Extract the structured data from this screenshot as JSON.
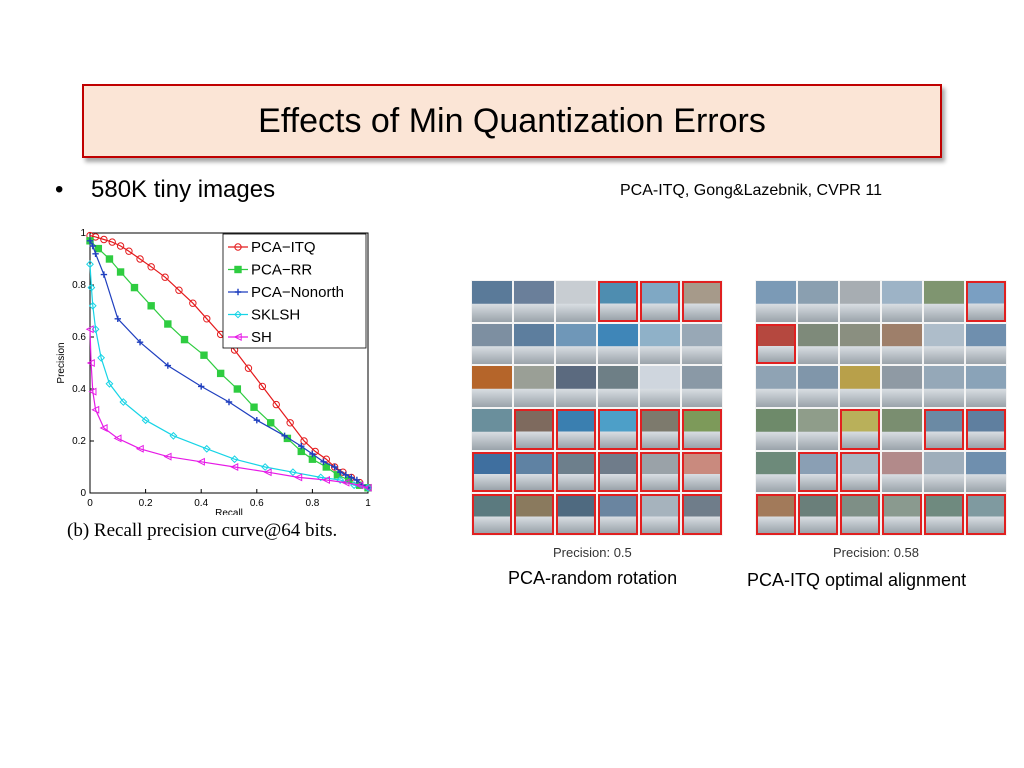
{
  "slide": {
    "title": "Effects of Min Quantization Errors",
    "bullet": "580K tiny images",
    "citation": "PCA-ITQ, Gong&Lazebnik, CVPR 11",
    "chart_caption": "(b)  Recall precision curve@64 bits."
  },
  "panels": [
    {
      "precision_label": "Precision: 0.5",
      "caption": "PCA-random rotation",
      "cells": [
        {
          "c": "#5a7a99",
          "r": false
        },
        {
          "c": "#6a7f9a",
          "r": false
        },
        {
          "c": "#c8cdd2",
          "r": false
        },
        {
          "c": "#4e8db0",
          "r": true
        },
        {
          "c": "#7fa8c4",
          "r": true
        },
        {
          "c": "#a69a8a",
          "r": true
        },
        {
          "c": "#7d8fa1",
          "r": false
        },
        {
          "c": "#5d7e9e",
          "r": false
        },
        {
          "c": "#6f97b8",
          "r": false
        },
        {
          "c": "#3f86b8",
          "r": false
        },
        {
          "c": "#8fb1c8",
          "r": false
        },
        {
          "c": "#98a8b6",
          "r": false
        },
        {
          "c": "#b5652a",
          "r": false
        },
        {
          "c": "#9a9f96",
          "r": false
        },
        {
          "c": "#5b6a7f",
          "r": false
        },
        {
          "c": "#6e7f86",
          "r": false
        },
        {
          "c": "#cfd6de",
          "r": false
        },
        {
          "c": "#8a99a6",
          "r": false
        },
        {
          "c": "#6a8f9c",
          "r": false
        },
        {
          "c": "#7e6a5e",
          "r": true
        },
        {
          "c": "#3a7fb0",
          "r": true
        },
        {
          "c": "#4d9fc8",
          "r": true
        },
        {
          "c": "#7d7a6d",
          "r": true
        },
        {
          "c": "#7d9a5a",
          "r": true
        },
        {
          "c": "#3f6f9f",
          "r": true
        },
        {
          "c": "#5f82a3",
          "r": true
        },
        {
          "c": "#6d7f8c",
          "r": true
        },
        {
          "c": "#6f7c8a",
          "r": true
        },
        {
          "c": "#9aa2a8",
          "r": true
        },
        {
          "c": "#c98a7e",
          "r": true
        },
        {
          "c": "#5b7a7f",
          "r": true
        },
        {
          "c": "#8a7a5e",
          "r": true
        },
        {
          "c": "#4f6a80",
          "r": true
        },
        {
          "c": "#6a85a0",
          "r": true
        },
        {
          "c": "#a6b3bd",
          "r": true
        },
        {
          "c": "#6f7d8a",
          "r": true
        }
      ]
    },
    {
      "precision_label": "Precision: 0.58",
      "caption": "PCA-ITQ optimal alignment",
      "cells": [
        {
          "c": "#7b9ab6",
          "r": false
        },
        {
          "c": "#8a9fb0",
          "r": false
        },
        {
          "c": "#a7adb2",
          "r": false
        },
        {
          "c": "#9db3c6",
          "r": false
        },
        {
          "c": "#7f9570",
          "r": false
        },
        {
          "c": "#7a9fc2",
          "r": true
        },
        {
          "c": "#b5483f",
          "r": true
        },
        {
          "c": "#7e8a7a",
          "r": false
        },
        {
          "c": "#8a8f80",
          "r": false
        },
        {
          "c": "#9e7f6a",
          "r": false
        },
        {
          "c": "#aebdca",
          "r": false
        },
        {
          "c": "#6f8fae",
          "r": false
        },
        {
          "c": "#8fa3b4",
          "r": false
        },
        {
          "c": "#8096aa",
          "r": false
        },
        {
          "c": "#b8a04a",
          "r": false
        },
        {
          "c": "#8f9aa4",
          "r": false
        },
        {
          "c": "#95a8b8",
          "r": false
        },
        {
          "c": "#8aa3b8",
          "r": false
        },
        {
          "c": "#6e8a6a",
          "r": false
        },
        {
          "c": "#8f9d8a",
          "r": false
        },
        {
          "c": "#b9b05a",
          "r": true
        },
        {
          "c": "#7a8e70",
          "r": false
        },
        {
          "c": "#6b8aa4",
          "r": true
        },
        {
          "c": "#5f7f9f",
          "r": true
        },
        {
          "c": "#6d8a7a",
          "r": false
        },
        {
          "c": "#8a9fb4",
          "r": true
        },
        {
          "c": "#a8b6c2",
          "r": true
        },
        {
          "c": "#b28a8a",
          "r": false
        },
        {
          "c": "#9faebb",
          "r": false
        },
        {
          "c": "#6f8fae",
          "r": false
        },
        {
          "c": "#a27a5a",
          "r": true
        },
        {
          "c": "#6a7f7a",
          "r": true
        },
        {
          "c": "#7e8f86",
          "r": true
        },
        {
          "c": "#8a9a8f",
          "r": true
        },
        {
          "c": "#6f8a7f",
          "r": true
        },
        {
          "c": "#7f9aa0",
          "r": true
        }
      ]
    }
  ],
  "chart_data": {
    "type": "line",
    "xlabel": "Recall",
    "ylabel": "Precision",
    "xlim": [
      0,
      1
    ],
    "ylim": [
      0,
      1
    ],
    "xticks": [
      "0",
      "0.2",
      "0.4",
      "0.6",
      "0.8",
      "1"
    ],
    "yticks": [
      "0",
      "0.2",
      "0.4",
      "0.6",
      "0.8",
      "1"
    ],
    "legend_position": "top-right",
    "series": [
      {
        "name": "PCA−ITQ",
        "color": "#e41a1c",
        "marker": "circle",
        "x": [
          0,
          0.02,
          0.05,
          0.08,
          0.11,
          0.14,
          0.18,
          0.22,
          0.27,
          0.32,
          0.37,
          0.42,
          0.47,
          0.52,
          0.57,
          0.62,
          0.67,
          0.72,
          0.77,
          0.81,
          0.85,
          0.88,
          0.91,
          0.94,
          0.97,
          1.0
        ],
        "y": [
          0.99,
          0.985,
          0.975,
          0.965,
          0.95,
          0.93,
          0.9,
          0.87,
          0.83,
          0.78,
          0.73,
          0.67,
          0.61,
          0.55,
          0.48,
          0.41,
          0.34,
          0.27,
          0.2,
          0.16,
          0.13,
          0.1,
          0.08,
          0.06,
          0.04,
          0.02
        ]
      },
      {
        "name": "PCA−RR",
        "color": "#2ecc40",
        "marker": "square",
        "x": [
          0,
          0.03,
          0.07,
          0.11,
          0.16,
          0.22,
          0.28,
          0.34,
          0.41,
          0.47,
          0.53,
          0.59,
          0.65,
          0.71,
          0.76,
          0.8,
          0.85,
          0.89,
          0.93,
          0.97,
          1.0
        ],
        "y": [
          0.97,
          0.94,
          0.9,
          0.85,
          0.79,
          0.72,
          0.65,
          0.59,
          0.53,
          0.46,
          0.4,
          0.33,
          0.27,
          0.21,
          0.16,
          0.13,
          0.1,
          0.07,
          0.05,
          0.03,
          0.02
        ]
      },
      {
        "name": "PCA−Nonorth",
        "color": "#1f3fbf",
        "marker": "plus",
        "x": [
          0,
          0.01,
          0.02,
          0.05,
          0.1,
          0.18,
          0.28,
          0.4,
          0.5,
          0.6,
          0.7,
          0.76,
          0.8,
          0.84,
          0.88,
          0.9,
          0.92,
          0.94,
          0.96,
          0.98,
          1.0
        ],
        "y": [
          0.97,
          0.95,
          0.92,
          0.84,
          0.67,
          0.58,
          0.49,
          0.41,
          0.35,
          0.28,
          0.22,
          0.18,
          0.15,
          0.12,
          0.1,
          0.08,
          0.07,
          0.06,
          0.05,
          0.03,
          0.02
        ]
      },
      {
        "name": "SKLSH",
        "color": "#17d4e6",
        "marker": "diamond",
        "x": [
          0,
          0.005,
          0.01,
          0.02,
          0.04,
          0.07,
          0.12,
          0.2,
          0.3,
          0.42,
          0.52,
          0.63,
          0.73,
          0.83,
          0.9,
          0.95,
          1.0
        ],
        "y": [
          0.88,
          0.79,
          0.72,
          0.63,
          0.52,
          0.42,
          0.35,
          0.28,
          0.22,
          0.17,
          0.13,
          0.1,
          0.08,
          0.06,
          0.05,
          0.03,
          0.02
        ]
      },
      {
        "name": "SH",
        "color": "#e61ae6",
        "marker": "triangle-left",
        "x": [
          0,
          0.004,
          0.01,
          0.02,
          0.05,
          0.1,
          0.18,
          0.28,
          0.4,
          0.52,
          0.64,
          0.75,
          0.85,
          0.92,
          0.97,
          1.0
        ],
        "y": [
          0.63,
          0.5,
          0.39,
          0.32,
          0.25,
          0.21,
          0.17,
          0.14,
          0.12,
          0.1,
          0.08,
          0.06,
          0.05,
          0.04,
          0.03,
          0.02
        ]
      }
    ]
  }
}
